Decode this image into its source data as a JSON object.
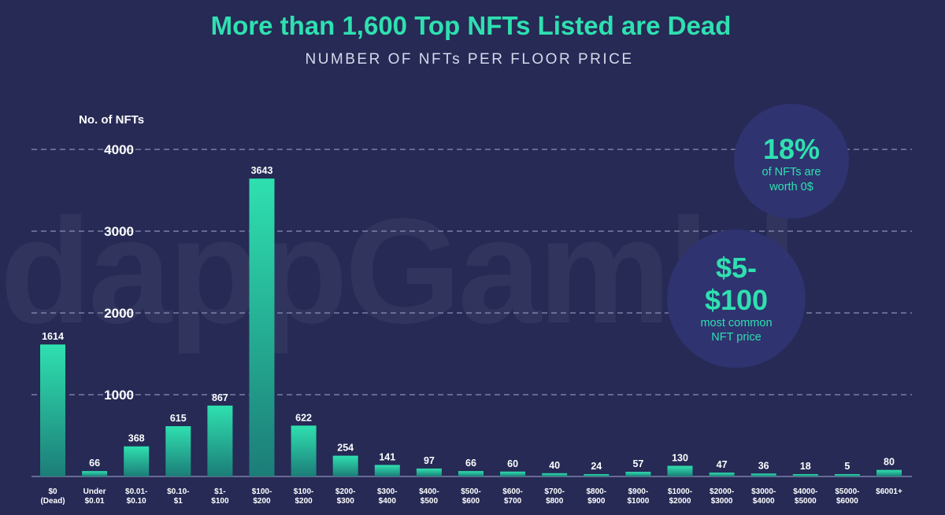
{
  "chart_data": {
    "type": "bar",
    "title": "More than 1,600 Top NFTs Listed are Dead",
    "subtitle": "NUMBER OF NFTs PER FLOOR PRICE",
    "ylabel": "No. of NFTs",
    "xlabel": "",
    "ylim": [
      0,
      4000
    ],
    "yticks": [
      1000,
      2000,
      3000,
      4000
    ],
    "grid": true,
    "categories": [
      [
        "$0",
        "(Dead)"
      ],
      [
        "Under",
        "$0.01"
      ],
      [
        "$0.01-",
        "$0.10"
      ],
      [
        "$0.10-",
        "$1"
      ],
      [
        "$1-",
        "$100"
      ],
      [
        "$100-",
        "$200"
      ],
      [
        "$100-",
        "$200"
      ],
      [
        "$200-",
        "$300"
      ],
      [
        "$300-",
        "$400"
      ],
      [
        "$400-",
        "$500"
      ],
      [
        "$500-",
        "$600"
      ],
      [
        "$600-",
        "$700"
      ],
      [
        "$700-",
        "$800"
      ],
      [
        "$800-",
        "$900"
      ],
      [
        "$900-",
        "$1000"
      ],
      [
        "$1000-",
        "$2000"
      ],
      [
        "$2000-",
        "$3000"
      ],
      [
        "$3000-",
        "$4000"
      ],
      [
        "$4000-",
        "$5000"
      ],
      [
        "$5000-",
        "$6000"
      ],
      [
        "$6001+"
      ]
    ],
    "values": [
      1614,
      66,
      368,
      615,
      867,
      3643,
      622,
      254,
      141,
      97,
      66,
      60,
      40,
      24,
      57,
      130,
      47,
      36,
      18,
      5,
      80
    ],
    "annotations": [
      {
        "big": "18%",
        "lines": [
          "of NFTs are",
          "worth 0$"
        ]
      },
      {
        "big_lines": [
          "$5-",
          "$100"
        ],
        "lines": [
          "most common",
          "NFT price"
        ]
      }
    ],
    "watermark": "dappGambl"
  },
  "colors": {
    "background": "#262a55",
    "accent": "#2fe0b0",
    "bar_top": "#2fe0b0",
    "bar_bottom": "#1c7d78",
    "bubble": "#2f3370"
  }
}
